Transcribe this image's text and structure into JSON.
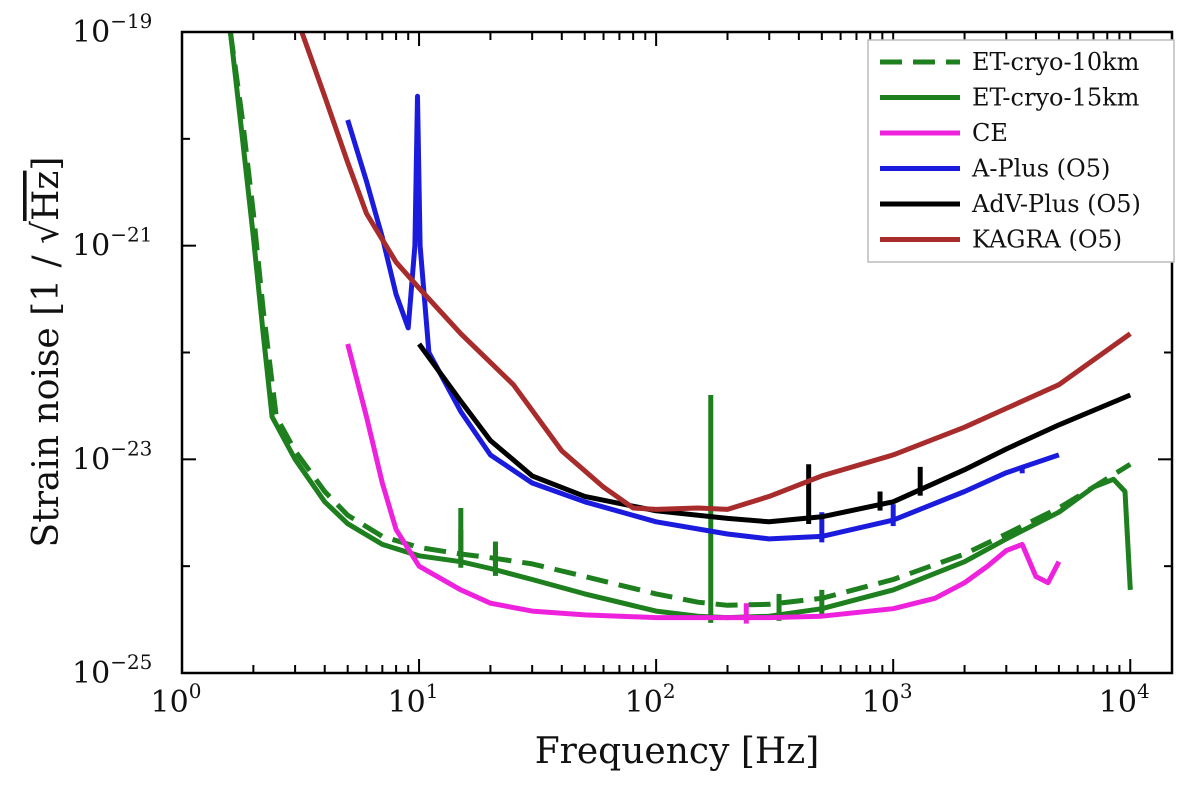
{
  "chart_data": {
    "type": "line",
    "title": "",
    "xlabel": "Frequency [Hz]",
    "ylabel_prefix": "Strain noise [1 / ",
    "ylabel_sqrt": "Hz",
    "ylabel_suffix": "]",
    "xscale": "log",
    "yscale": "log",
    "xlim": [
      1,
      15000
    ],
    "ylim": [
      1e-25,
      1e-19
    ],
    "x_ticks": [
      {
        "value": 1,
        "base": "10",
        "exp": "0"
      },
      {
        "value": 10,
        "base": "10",
        "exp": "1"
      },
      {
        "value": 100,
        "base": "10",
        "exp": "2"
      },
      {
        "value": 1000,
        "base": "10",
        "exp": "3"
      },
      {
        "value": 10000,
        "base": "10",
        "exp": "4"
      }
    ],
    "y_ticks": [
      {
        "value": 1e-25,
        "base": "10",
        "exp": "−25"
      },
      {
        "value": 1e-23,
        "base": "10",
        "exp": "−23"
      },
      {
        "value": 1e-21,
        "base": "10",
        "exp": "−21"
      },
      {
        "value": 1e-19,
        "base": "10",
        "exp": "−19"
      }
    ],
    "legend_position": "top-right",
    "series": [
      {
        "name": "ET-cryo-10km",
        "color": "#1e7f1e",
        "dashed": true,
        "points": [
          [
            1.6,
            1e-19
          ],
          [
            1.8,
            1.5e-20
          ],
          [
            2,
            2e-21
          ],
          [
            2.2,
            2.5e-22
          ],
          [
            2.5,
            2.5e-23
          ],
          [
            3,
            1.2e-23
          ],
          [
            4,
            5e-24
          ],
          [
            5,
            3e-24
          ],
          [
            7,
            1.9e-24
          ],
          [
            10,
            1.5e-24
          ],
          [
            15,
            1.3e-24
          ],
          [
            20,
            1.2e-24
          ],
          [
            30,
            1.05e-24
          ],
          [
            50,
            8e-25
          ],
          [
            100,
            5.5e-25
          ],
          [
            150,
            4.6e-25
          ],
          [
            200,
            4.3e-25
          ],
          [
            300,
            4.4e-25
          ],
          [
            500,
            5e-25
          ],
          [
            1000,
            7.5e-25
          ],
          [
            2000,
            1.3e-24
          ],
          [
            3000,
            2e-24
          ],
          [
            5000,
            3.5e-24
          ],
          [
            7000,
            5.5e-24
          ],
          [
            10000,
            9e-24
          ]
        ],
        "peaks": [
          [
            15,
            2.2e-24
          ],
          [
            21,
            1.7e-24
          ]
        ]
      },
      {
        "name": "ET-cryo-15km",
        "color": "#1e7f1e",
        "dashed": false,
        "points": [
          [
            1.6,
            1e-19
          ],
          [
            1.8,
            1e-20
          ],
          [
            2,
            1.2e-21
          ],
          [
            2.2,
            1.5e-22
          ],
          [
            2.4,
            2.5e-23
          ],
          [
            3,
            1e-23
          ],
          [
            4,
            4e-24
          ],
          [
            5,
            2.5e-24
          ],
          [
            7,
            1.6e-24
          ],
          [
            10,
            1.25e-24
          ],
          [
            15,
            1.1e-24
          ],
          [
            20,
            9.5e-25
          ],
          [
            30,
            7.5e-25
          ],
          [
            50,
            5.5e-25
          ],
          [
            100,
            3.8e-25
          ],
          [
            150,
            3.4e-25
          ],
          [
            200,
            3.3e-25
          ],
          [
            300,
            3.4e-25
          ],
          [
            500,
            4e-25
          ],
          [
            1000,
            6e-25
          ],
          [
            2000,
            1.1e-24
          ],
          [
            3000,
            1.8e-24
          ],
          [
            5000,
            3.2e-24
          ],
          [
            7000,
            5.5e-24
          ],
          [
            8500,
            6.5e-24
          ],
          [
            9500,
            5e-24
          ],
          [
            10000,
            6e-25
          ]
        ],
        "peaks": [
          [
            15,
            3.5e-24
          ],
          [
            21,
            1.5e-24
          ],
          [
            170,
            4e-23
          ],
          [
            330,
            5.5e-25
          ],
          [
            500,
            6e-25
          ]
        ]
      },
      {
        "name": "CE",
        "color": "#ee22dd",
        "dashed": false,
        "points": [
          [
            5,
            1.2e-22
          ],
          [
            6,
            2.5e-23
          ],
          [
            7,
            6e-24
          ],
          [
            8,
            2.2e-24
          ],
          [
            10,
            1e-24
          ],
          [
            15,
            6e-25
          ],
          [
            20,
            4.5e-25
          ],
          [
            30,
            3.8e-25
          ],
          [
            50,
            3.5e-25
          ],
          [
            100,
            3.3e-25
          ],
          [
            200,
            3.3e-25
          ],
          [
            300,
            3.3e-25
          ],
          [
            500,
            3.4e-25
          ],
          [
            1000,
            4e-25
          ],
          [
            1500,
            5e-25
          ],
          [
            2000,
            7e-25
          ],
          [
            2500,
            1e-24
          ],
          [
            3000,
            1.4e-24
          ],
          [
            3500,
            1.6e-24
          ],
          [
            4000,
            8e-25
          ],
          [
            4500,
            7e-25
          ],
          [
            5000,
            1.1e-24
          ]
        ],
        "peaks": [
          [
            240,
            4.5e-25
          ]
        ]
      },
      {
        "name": "A-Plus (O5)",
        "color": "#1b1bdd",
        "dashed": false,
        "points": [
          [
            5,
            1.5e-20
          ],
          [
            6,
            4e-21
          ],
          [
            7,
            1.2e-21
          ],
          [
            8,
            3.5e-22
          ],
          [
            9,
            1.7e-22
          ],
          [
            9.6,
            1e-21
          ],
          [
            9.85,
            2.5e-20
          ],
          [
            10.1,
            1e-21
          ],
          [
            11,
            1e-22
          ],
          [
            15,
            2.8e-23
          ],
          [
            20,
            1.1e-23
          ],
          [
            30,
            6e-24
          ],
          [
            50,
            4e-24
          ],
          [
            100,
            2.6e-24
          ],
          [
            200,
            2e-24
          ],
          [
            300,
            1.8e-24
          ],
          [
            500,
            1.9e-24
          ],
          [
            1000,
            2.7e-24
          ],
          [
            2000,
            5e-24
          ],
          [
            3000,
            7.5e-24
          ],
          [
            5000,
            1.1e-23
          ]
        ],
        "peaks": [
          [
            500,
            3.2e-24
          ],
          [
            1000,
            3.8e-24
          ],
          [
            3500,
            8.5e-24
          ]
        ]
      },
      {
        "name": "AdV-Plus (O5)",
        "color": "#000000",
        "dashed": false,
        "points": [
          [
            10,
            1.2e-22
          ],
          [
            15,
            3.5e-23
          ],
          [
            20,
            1.5e-23
          ],
          [
            30,
            7e-24
          ],
          [
            50,
            4.5e-24
          ],
          [
            100,
            3.3e-24
          ],
          [
            200,
            2.8e-24
          ],
          [
            300,
            2.6e-24
          ],
          [
            500,
            2.9e-24
          ],
          [
            1000,
            4e-24
          ],
          [
            2000,
            8e-24
          ],
          [
            3000,
            1.25e-23
          ],
          [
            5000,
            2.1e-23
          ],
          [
            10000,
            4e-23
          ]
        ],
        "peaks": [
          [
            440,
            9e-24
          ],
          [
            880,
            5e-24
          ],
          [
            1300,
            8.5e-24
          ]
        ]
      },
      {
        "name": "KAGRA (O5)",
        "color": "#a82c2c",
        "dashed": false,
        "points": [
          [
            3.2,
            1e-19
          ],
          [
            4,
            2.5e-20
          ],
          [
            5,
            6e-21
          ],
          [
            6,
            2e-21
          ],
          [
            8,
            7e-22
          ],
          [
            10,
            4e-22
          ],
          [
            15,
            1.5e-22
          ],
          [
            25,
            5e-23
          ],
          [
            40,
            1.2e-23
          ],
          [
            60,
            5.5e-24
          ],
          [
            80,
            3.5e-24
          ],
          [
            100,
            3.4e-24
          ],
          [
            150,
            3.5e-24
          ],
          [
            200,
            3.4e-24
          ],
          [
            300,
            4.5e-24
          ],
          [
            500,
            7e-24
          ],
          [
            1000,
            1.1e-23
          ],
          [
            2000,
            2e-23
          ],
          [
            3000,
            3e-23
          ],
          [
            5000,
            5e-23
          ],
          [
            10000,
            1.5e-22
          ]
        ],
        "peaks": []
      }
    ]
  }
}
